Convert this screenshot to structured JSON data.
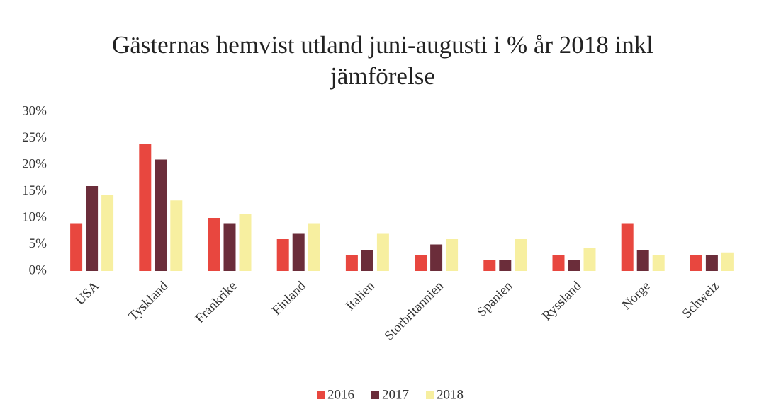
{
  "chart_data": {
    "type": "bar",
    "title": "Gästernas hemvist utland juni-augusti i % år 2018 inkl jämförelse",
    "categories": [
      "USA",
      "Tyskland",
      "Frankrike",
      "Finland",
      "Italien",
      "Storbritannien",
      "Spanien",
      "Ryssland",
      "Norge",
      "Schweiz"
    ],
    "series": [
      {
        "name": "2016",
        "color": "#e8473f",
        "values": [
          9,
          24,
          10,
          6,
          3,
          3,
          2,
          3,
          9,
          3
        ]
      },
      {
        "name": "2017",
        "color": "#6b2d3a",
        "values": [
          16,
          21,
          9,
          7,
          4,
          5,
          2,
          2,
          4,
          3
        ]
      },
      {
        "name": "2018",
        "color": "#f7efa0",
        "values": [
          14.3,
          13.3,
          10.8,
          9,
          7,
          6,
          6,
          4.4,
          3,
          3.5
        ]
      }
    ],
    "ylim": [
      0,
      30
    ],
    "yticks": [
      {
        "value": 0,
        "label": "0%"
      },
      {
        "value": 5,
        "label": "5%"
      },
      {
        "value": 10,
        "label": "10%"
      },
      {
        "value": 15,
        "label": "15%"
      },
      {
        "value": 20,
        "label": "20%"
      },
      {
        "value": 25,
        "label": "25%"
      },
      {
        "value": 30,
        "label": "30%"
      }
    ],
    "grid": false,
    "legend": "bottom"
  }
}
